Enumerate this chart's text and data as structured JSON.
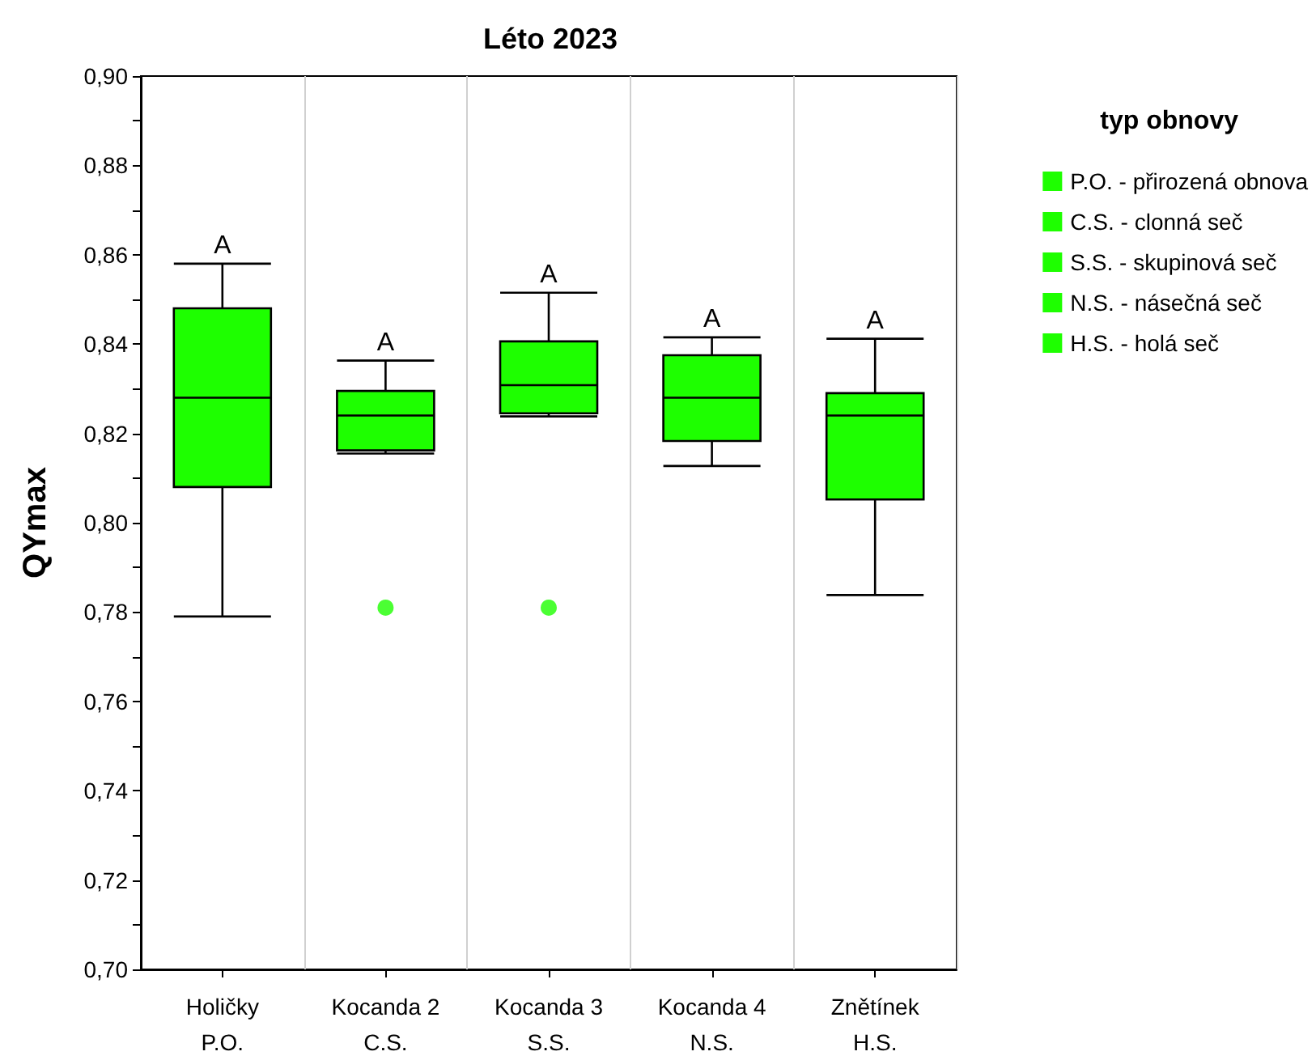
{
  "chart_data": {
    "type": "box",
    "title": "Léto 2023",
    "ylabel": "QYmax",
    "legend_title": "typ obnovy",
    "categories": [
      "Holičky\nP.O.",
      "Kocanda 2\nC.S.",
      "Kocanda 3\nS.S.",
      "Kocanda 4\nN.S.",
      "Znětínek\nH.S."
    ],
    "ylim": [
      0.7,
      0.9
    ],
    "yticks": [
      {
        "value": 0.7,
        "label": "0,70"
      },
      {
        "value": 0.71,
        "label": null
      },
      {
        "value": 0.72,
        "label": "0,72"
      },
      {
        "value": 0.73,
        "label": null
      },
      {
        "value": 0.74,
        "label": "0,74"
      },
      {
        "value": 0.75,
        "label": null
      },
      {
        "value": 0.76,
        "label": "0,76"
      },
      {
        "value": 0.77,
        "label": null
      },
      {
        "value": 0.78,
        "label": "0,78"
      },
      {
        "value": 0.79,
        "label": null
      },
      {
        "value": 0.8,
        "label": "0,80"
      },
      {
        "value": 0.81,
        "label": null
      },
      {
        "value": 0.82,
        "label": "0,82"
      },
      {
        "value": 0.83,
        "label": null
      },
      {
        "value": 0.84,
        "label": "0,84"
      },
      {
        "value": 0.85,
        "label": null
      },
      {
        "value": 0.86,
        "label": "0,86"
      },
      {
        "value": 0.87,
        "label": null
      },
      {
        "value": 0.88,
        "label": "0,88"
      },
      {
        "value": 0.89,
        "label": null
      },
      {
        "value": 0.9,
        "label": "0,90"
      }
    ],
    "grid": "x",
    "legend": "right",
    "series": [
      {
        "name": "P.O. - přirozená obnova",
        "color": "#1eff00",
        "boxes": [
          {
            "low": 0.779,
            "q1": 0.808,
            "median": 0.828,
            "q3": 0.848,
            "high": 0.858
          },
          null,
          null,
          null,
          null
        ]
      },
      {
        "name": "C.S. - clonná seč",
        "color": "#1eff00",
        "boxes": [
          null,
          {
            "low": 0.8155,
            "q1": 0.8162,
            "median": 0.824,
            "q3": 0.8295,
            "high": 0.8363,
            "outliers": [
              0.781
            ]
          },
          null,
          null,
          null
        ]
      },
      {
        "name": "S.S. - skupinová seč",
        "color": "#1eff00",
        "boxes": [
          null,
          null,
          {
            "low": 0.8238,
            "q1": 0.8245,
            "median": 0.8308,
            "q3": 0.8406,
            "high": 0.8515,
            "outliers": [
              0.781
            ]
          },
          null,
          null
        ]
      },
      {
        "name": "N.S. - násečná seč",
        "color": "#1eff00",
        "boxes": [
          null,
          null,
          null,
          {
            "low": 0.8127,
            "q1": 0.8183,
            "median": 0.828,
            "q3": 0.8375,
            "high": 0.8415
          },
          null
        ]
      },
      {
        "name": "H.S. - holá seč",
        "color": "#1eff00",
        "boxes": [
          null,
          null,
          null,
          null,
          {
            "low": 0.7838,
            "q1": 0.8052,
            "median": 0.824,
            "q3": 0.829,
            "high": 0.8412
          }
        ]
      }
    ],
    "annotations": [
      "A",
      "A",
      "A",
      "A",
      "A"
    ]
  }
}
